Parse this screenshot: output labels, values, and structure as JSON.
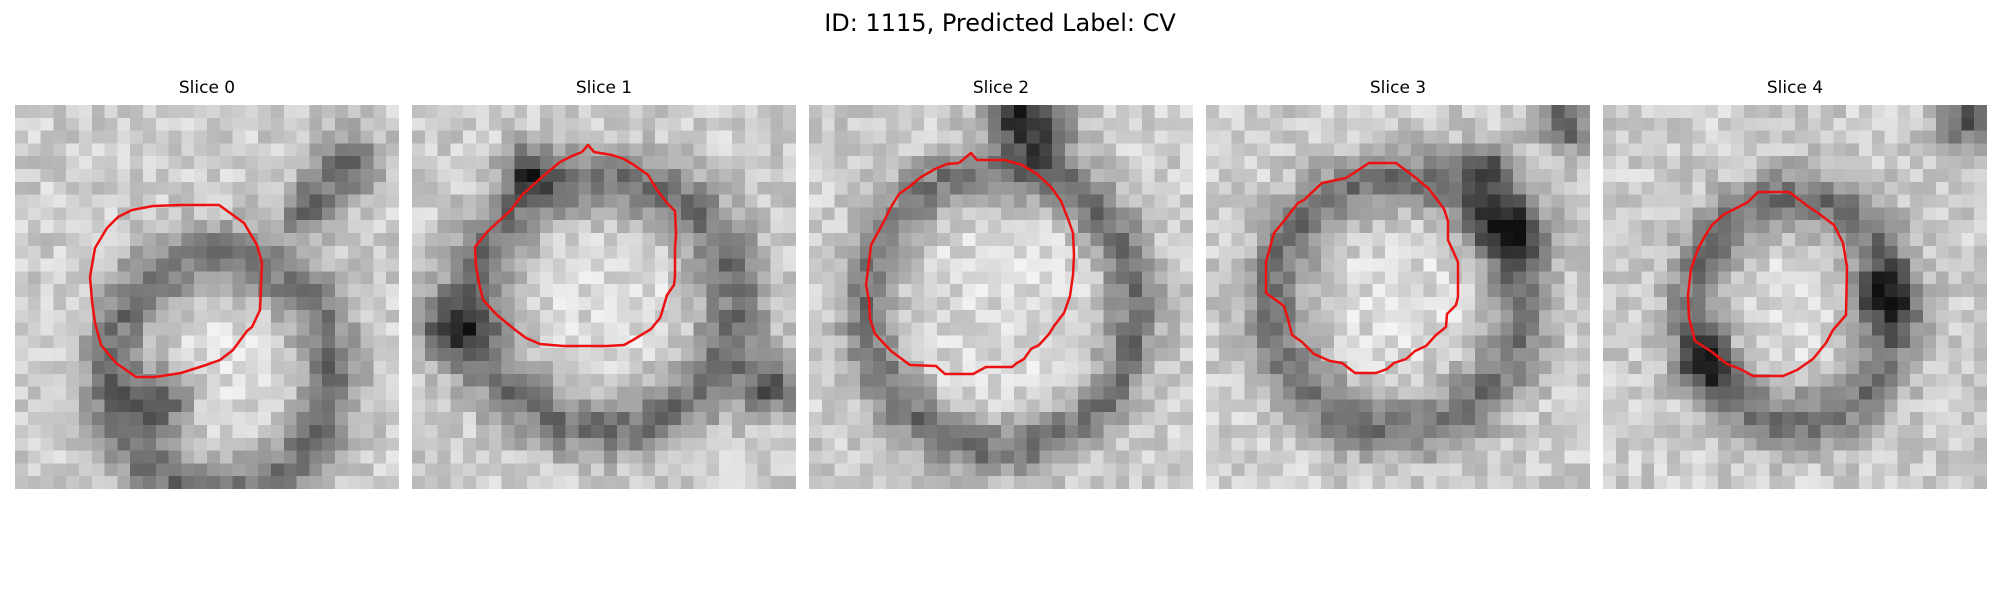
{
  "figure": {
    "title": "ID: 1115, Predicted Label: CV"
  },
  "contour_color": "#ee1111",
  "slices": [
    {
      "title": "Slice 0"
    },
    {
      "title": "Slice 1"
    },
    {
      "title": "Slice 2"
    },
    {
      "title": "Slice 3"
    },
    {
      "title": "Slice 4"
    }
  ]
}
